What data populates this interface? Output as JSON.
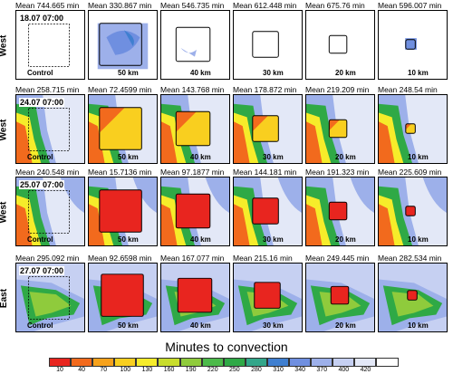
{
  "rows": [
    {
      "region": "West",
      "date": "18.07 07:00",
      "means": [
        "Mean 744.665 min",
        "Mean 330.867 min",
        "Mean 546.735 min",
        "Mean 612.448 min",
        "Mean 675.76 min",
        "Mean 596.007 min"
      ],
      "labels": [
        "Control",
        "50 km",
        "40 km",
        "30 km",
        "20 km",
        "10 km"
      ]
    },
    {
      "region": "West",
      "date": "24.07 07:00",
      "means": [
        "Mean 258.715 min",
        "Mean 72.4599 min",
        "Mean 143.768 min",
        "Mean 178.872 min",
        "Mean 219.209 min",
        "Mean 248.54 min"
      ],
      "labels": [
        "Control",
        "50 km",
        "40 km",
        "30 km",
        "20 km",
        "10 km"
      ]
    },
    {
      "region": "West",
      "date": "25.07 07:00",
      "means": [
        "Mean 240.548 min",
        "Mean 15.7136 min",
        "Mean 97.1877 min",
        "Mean 144.181 min",
        "Mean 191.323 min",
        "Mean 225.609 min"
      ],
      "labels": [
        "Control",
        "50 km",
        "40 km",
        "30 km",
        "20 km",
        "10 km"
      ]
    },
    {
      "region": "East",
      "date": "27.07 07:00",
      "means": [
        "Mean 295.092 min",
        "Mean 92.6598 min",
        "Mean 167.077 min",
        "Mean 215.16 min",
        "Mean 249.445 min",
        "Mean 282.534 min"
      ],
      "labels": [
        "Control",
        "50 km",
        "40 km",
        "30 km",
        "20 km",
        "10 km"
      ]
    }
  ],
  "colorbar": {
    "title": "Minutes to convection",
    "ticks": [
      "10",
      "40",
      "70",
      "100",
      "130",
      "160",
      "190",
      "220",
      "250",
      "280",
      "310",
      "340",
      "370",
      "400",
      "420"
    ],
    "colors": [
      "#e8251f",
      "#f26a1d",
      "#f7a21b",
      "#f9cf1f",
      "#f6ec2a",
      "#c8dd2c",
      "#8fcb3c",
      "#4cba4a",
      "#2fa946",
      "#33a68a",
      "#3f7fd0",
      "#6f8fe0",
      "#9db0ea",
      "#c6d0f2",
      "#e3e8f7",
      "#ffffff"
    ]
  }
}
